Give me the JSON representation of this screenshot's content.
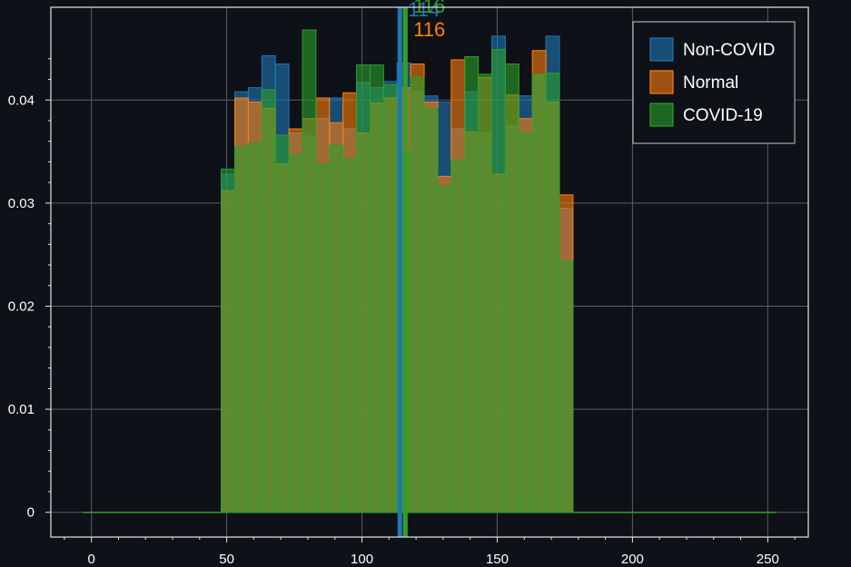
{
  "chart_data": {
    "type": "bar",
    "title": "",
    "xlabel": "",
    "ylabel": "",
    "xlim": [
      -15,
      265
    ],
    "ylim": [
      -0.0024,
      0.049
    ],
    "xticks": [
      0,
      50,
      100,
      150,
      200,
      250
    ],
    "yticks": [
      0,
      0.01,
      0.02,
      0.03,
      0.04
    ],
    "ytick_labels": [
      "0",
      "0.01",
      "0.02",
      "0.03",
      "0.04"
    ],
    "grid": true,
    "legend_position": "top-right",
    "bin_width": 5,
    "bin_edges": [
      48,
      53,
      58,
      63,
      68,
      73,
      78,
      83,
      88,
      93,
      98,
      103,
      108,
      113,
      118,
      123,
      128,
      133,
      138,
      143,
      148,
      153,
      158,
      163,
      168,
      173,
      178
    ],
    "baseline_range": [
      -3,
      253
    ],
    "series": [
      {
        "name": "Non-COVID",
        "color": "#1f77b4",
        "values": [
          0.0328,
          0.0408,
          0.0412,
          0.0443,
          0.0435,
          0.0368,
          0.0365,
          0.0382,
          0.0402,
          0.0372,
          0.0417,
          0.0412,
          0.0418,
          0.0436,
          0.0408,
          0.0404,
          0.0398,
          0.0372,
          0.0408,
          0.0368,
          0.0462,
          0.0375,
          0.0404,
          0.0425,
          0.0462,
          0.0295
        ]
      },
      {
        "name": "Normal",
        "color": "#ff7f0e",
        "values": [
          0.0312,
          0.0402,
          0.0398,
          0.0392,
          0.0338,
          0.0372,
          0.0382,
          0.0402,
          0.0378,
          0.0407,
          0.0368,
          0.0397,
          0.0402,
          0.0412,
          0.0435,
          0.0398,
          0.0326,
          0.0439,
          0.0369,
          0.0422,
          0.0328,
          0.0405,
          0.0382,
          0.0448,
          0.0398,
          0.0308
        ]
      },
      {
        "name": "COVID-19",
        "color": "#2ca02c",
        "values": [
          0.0333,
          0.0355,
          0.0358,
          0.041,
          0.0366,
          0.0347,
          0.0468,
          0.0338,
          0.0356,
          0.0343,
          0.0434,
          0.0434,
          0.0415,
          0.035,
          0.0422,
          0.0392,
          0.0316,
          0.0342,
          0.0442,
          0.0425,
          0.0449,
          0.0435,
          0.0368,
          0.0425,
          0.0426,
          0.0244
        ]
      }
    ],
    "markers": [
      {
        "series": "Non-COVID",
        "x": 114,
        "label": "114",
        "color": "#1f77b4"
      },
      {
        "series": "Normal",
        "x": 116,
        "label": "116",
        "color": "#ff7f0e"
      },
      {
        "series": "COVID-19",
        "x": 116,
        "label": "116",
        "color": "#2ca02c"
      }
    ]
  }
}
